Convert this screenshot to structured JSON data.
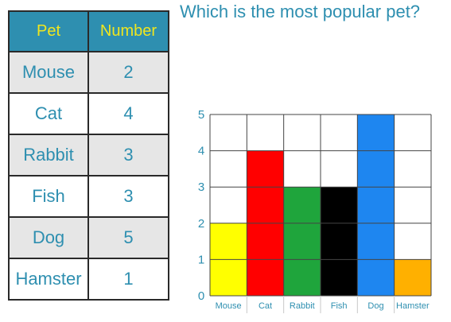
{
  "title": "Which is the most popular pet?",
  "table": {
    "headers": [
      "Pet",
      "Number"
    ],
    "rows": [
      {
        "pet": "Mouse",
        "number": "2"
      },
      {
        "pet": "Cat",
        "number": "4"
      },
      {
        "pet": "Rabbit",
        "number": "3"
      },
      {
        "pet": "Fish",
        "number": "3"
      },
      {
        "pet": "Dog",
        "number": "5"
      },
      {
        "pet": "Hamster",
        "number": "1"
      }
    ]
  },
  "chart_data": {
    "type": "bar",
    "title": "",
    "xlabel": "",
    "ylabel": "",
    "categories": [
      "Mouse",
      "Cat",
      "Rabbit",
      "Fish",
      "Dog",
      "Hamster"
    ],
    "values": [
      2,
      4,
      3,
      3,
      5,
      1
    ],
    "colors": [
      "#ffff00",
      "#ff0000",
      "#1fa53c",
      "#000000",
      "#1e86f0",
      "#ffb000"
    ],
    "ylim": [
      0,
      5
    ],
    "yticks": [
      "0",
      "1",
      "2",
      "3",
      "4",
      "5"
    ],
    "grid": true
  }
}
